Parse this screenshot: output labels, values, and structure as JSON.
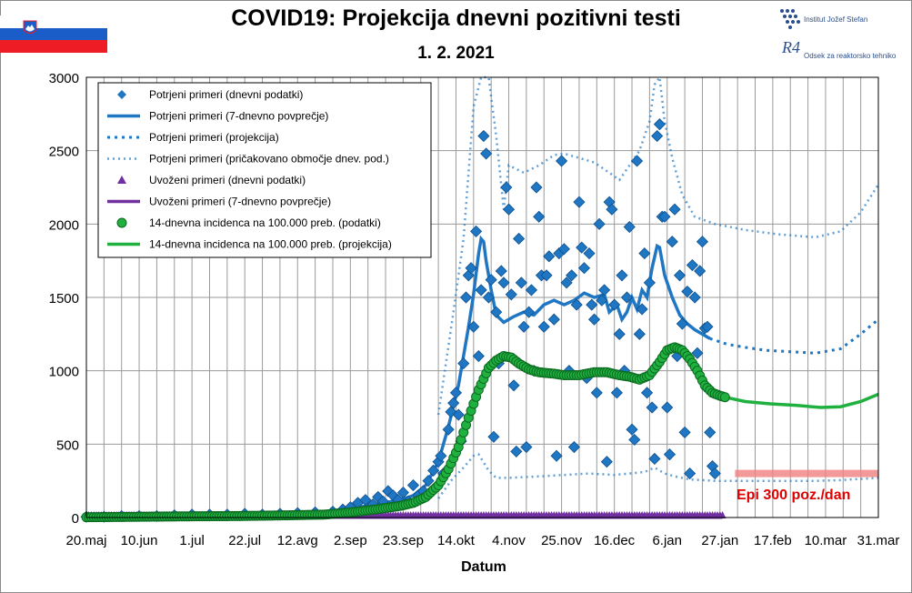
{
  "header": {
    "title": "COVID19: Projekcija dnevni pozitivni testi",
    "date": "1. 2. 2021",
    "logo_line1": "Institut Jožef Stefan",
    "logo_line2": "Odsek za reaktorsko tehniko",
    "logo_mark": "R4"
  },
  "colors": {
    "blue": "#1f77c4",
    "blue_dark": "#0e4f8c",
    "purple": "#7030a0",
    "green": "#20b040",
    "green_dark": "#0a6a1f",
    "red_band": "#f08080",
    "red_text": "#e00000",
    "grid": "#9a9a9a",
    "flag_white": "#ffffff",
    "flag_blue": "#1a5cc8",
    "flag_red": "#ee1c25"
  },
  "chart_data": {
    "type": "line",
    "xlabel": "Datum",
    "ylabel": "",
    "ylim": [
      0,
      3000
    ],
    "yticks": [
      0,
      500,
      1000,
      1500,
      2000,
      2500,
      3000
    ],
    "xlim": [
      "2020-05-20",
      "2021-03-31"
    ],
    "xticks": [
      "20.maj",
      "10.jun",
      "1.jul",
      "22.jul",
      "12.avg",
      "2.sep",
      "23.sep",
      "14.okt",
      "4.nov",
      "25.nov",
      "16.dec",
      "6.jan",
      "27.jan",
      "17.feb",
      "10.mar",
      "31.mar"
    ],
    "xtick_days": [
      0,
      21,
      42,
      63,
      84,
      105,
      126,
      147,
      168,
      189,
      210,
      231,
      252,
      273,
      294,
      315
    ],
    "grid": true,
    "legend_position": "top-left",
    "legend": [
      "Potrjeni primeri (dnevni podatki)",
      "Potrjeni primeri (7-dnevno povprečje)",
      "Potrjeni primeri (projekcija)",
      "Potrjeni primeri (pričakovano območje dnev. pod.)",
      "Uvoženi primeri (dnevni podatki)",
      "Uvoženi primeri (7-dnevno povprečje)",
      "14-dnevna incidenca na 100.000 preb. (podatki)",
      "14-dnevna incidenca na 100.000 preb. (projekcija)"
    ],
    "annotation": "Epi 300 poz./dan",
    "threshold": {
      "value": 300,
      "from_day": 258,
      "to_day": 315
    },
    "series": {
      "daily_confirmed": [
        [
          0,
          5
        ],
        [
          7,
          5
        ],
        [
          14,
          10
        ],
        [
          21,
          10
        ],
        [
          28,
          10
        ],
        [
          35,
          15
        ],
        [
          42,
          20
        ],
        [
          49,
          20
        ],
        [
          56,
          20
        ],
        [
          63,
          25
        ],
        [
          70,
          20
        ],
        [
          77,
          25
        ],
        [
          84,
          30
        ],
        [
          91,
          35
        ],
        [
          98,
          40
        ],
        [
          102,
          55
        ],
        [
          105,
          70
        ],
        [
          108,
          100
        ],
        [
          111,
          120
        ],
        [
          114,
          90
        ],
        [
          116,
          140
        ],
        [
          118,
          110
        ],
        [
          120,
          180
        ],
        [
          122,
          150
        ],
        [
          124,
          120
        ],
        [
          126,
          170
        ],
        [
          128,
          110
        ],
        [
          130,
          220
        ],
        [
          132,
          150
        ],
        [
          134,
          180
        ],
        [
          136,
          250
        ],
        [
          138,
          320
        ],
        [
          140,
          380
        ],
        [
          141,
          420
        ],
        [
          142,
          300
        ],
        [
          144,
          600
        ],
        [
          145,
          720
        ],
        [
          146,
          780
        ],
        [
          147,
          850
        ],
        [
          148,
          700
        ],
        [
          149,
          520
        ],
        [
          150,
          1050
        ],
        [
          151,
          1500
        ],
        [
          152,
          1650
        ],
        [
          153,
          1700
        ],
        [
          154,
          1300
        ],
        [
          155,
          1950
        ],
        [
          156,
          1100
        ],
        [
          157,
          1550
        ],
        [
          158,
          2600
        ],
        [
          159,
          2480
        ],
        [
          160,
          1500
        ],
        [
          161,
          1620
        ],
        [
          162,
          550
        ],
        [
          163,
          1400
        ],
        [
          164,
          1050
        ],
        [
          165,
          1680
        ],
        [
          166,
          1600
        ],
        [
          167,
          2250
        ],
        [
          168,
          2100
        ],
        [
          169,
          1520
        ],
        [
          170,
          900
        ],
        [
          171,
          450
        ],
        [
          172,
          1900
        ],
        [
          173,
          1600
        ],
        [
          174,
          1300
        ],
        [
          175,
          480
        ],
        [
          176,
          1400
        ],
        [
          177,
          1550
        ],
        [
          178,
          1000
        ],
        [
          179,
          2250
        ],
        [
          180,
          2050
        ],
        [
          181,
          1650
        ],
        [
          182,
          1300
        ],
        [
          183,
          1650
        ],
        [
          184,
          1780
        ],
        [
          186,
          1350
        ],
        [
          187,
          420
        ],
        [
          188,
          1800
        ],
        [
          189,
          2430
        ],
        [
          190,
          1830
        ],
        [
          191,
          1600
        ],
        [
          192,
          1000
        ],
        [
          193,
          1650
        ],
        [
          194,
          480
        ],
        [
          195,
          1450
        ],
        [
          196,
          2150
        ],
        [
          197,
          1840
        ],
        [
          198,
          1700
        ],
        [
          199,
          950
        ],
        [
          200,
          1800
        ],
        [
          201,
          1450
        ],
        [
          202,
          1350
        ],
        [
          203,
          850
        ],
        [
          204,
          2000
        ],
        [
          205,
          1480
        ],
        [
          206,
          1550
        ],
        [
          207,
          380
        ],
        [
          208,
          2150
        ],
        [
          209,
          2100
        ],
        [
          210,
          1450
        ],
        [
          211,
          850
        ],
        [
          212,
          1250
        ],
        [
          213,
          1650
        ],
        [
          214,
          1000
        ],
        [
          215,
          1500
        ],
        [
          216,
          1980
        ],
        [
          217,
          600
        ],
        [
          218,
          530
        ],
        [
          219,
          2430
        ],
        [
          220,
          1250
        ],
        [
          221,
          1420
        ],
        [
          222,
          1800
        ],
        [
          223,
          850
        ],
        [
          224,
          1600
        ],
        [
          225,
          750
        ],
        [
          226,
          400
        ],
        [
          227,
          2600
        ],
        [
          228,
          2680
        ],
        [
          229,
          2050
        ],
        [
          230,
          2050
        ],
        [
          231,
          750
        ],
        [
          232,
          430
        ],
        [
          233,
          1880
        ],
        [
          234,
          2100
        ],
        [
          235,
          1100
        ],
        [
          236,
          1650
        ],
        [
          237,
          1320
        ],
        [
          238,
          580
        ],
        [
          239,
          1540
        ],
        [
          240,
          300
        ],
        [
          241,
          1720
        ],
        [
          242,
          1500
        ],
        [
          243,
          1120
        ],
        [
          244,
          1680
        ],
        [
          245,
          1880
        ],
        [
          246,
          1290
        ],
        [
          247,
          1300
        ],
        [
          248,
          580
        ],
        [
          249,
          350
        ],
        [
          250,
          300
        ]
      ],
      "avg7_confirmed": [
        [
          0,
          5
        ],
        [
          20,
          10
        ],
        [
          40,
          15
        ],
        [
          60,
          20
        ],
        [
          80,
          30
        ],
        [
          95,
          40
        ],
        [
          105,
          60
        ],
        [
          115,
          90
        ],
        [
          125,
          120
        ],
        [
          130,
          150
        ],
        [
          135,
          220
        ],
        [
          140,
          380
        ],
        [
          144,
          620
        ],
        [
          148,
          900
        ],
        [
          152,
          1300
        ],
        [
          154,
          1520
        ],
        [
          156,
          1800
        ],
        [
          157,
          1900
        ],
        [
          158,
          1880
        ],
        [
          159,
          1750
        ],
        [
          161,
          1550
        ],
        [
          163,
          1380
        ],
        [
          166,
          1330
        ],
        [
          170,
          1370
        ],
        [
          174,
          1400
        ],
        [
          178,
          1380
        ],
        [
          182,
          1450
        ],
        [
          186,
          1480
        ],
        [
          190,
          1450
        ],
        [
          194,
          1480
        ],
        [
          198,
          1530
        ],
        [
          202,
          1500
        ],
        [
          206,
          1520
        ],
        [
          208,
          1400
        ],
        [
          211,
          1450
        ],
        [
          213,
          1350
        ],
        [
          215,
          1400
        ],
        [
          217,
          1500
        ],
        [
          219,
          1420
        ],
        [
          221,
          1550
        ],
        [
          223,
          1500
        ],
        [
          225,
          1700
        ],
        [
          227,
          1850
        ],
        [
          228,
          1840
        ],
        [
          230,
          1650
        ],
        [
          233,
          1500
        ],
        [
          236,
          1380
        ],
        [
          239,
          1320
        ],
        [
          242,
          1280
        ],
        [
          245,
          1250
        ],
        [
          248,
          1220
        ]
      ],
      "projection": [
        [
          248,
          1220
        ],
        [
          255,
          1180
        ],
        [
          262,
          1160
        ],
        [
          270,
          1140
        ],
        [
          280,
          1130
        ],
        [
          290,
          1120
        ],
        [
          300,
          1150
        ],
        [
          308,
          1250
        ],
        [
          315,
          1350
        ]
      ],
      "range_upper": [
        [
          140,
          700
        ],
        [
          146,
          1400
        ],
        [
          150,
          1900
        ],
        [
          154,
          2800
        ],
        [
          157,
          3000
        ],
        [
          160,
          3000
        ],
        [
          163,
          2600
        ],
        [
          166,
          2100
        ],
        [
          168,
          2400
        ],
        [
          174,
          2350
        ],
        [
          180,
          2400
        ],
        [
          186,
          2470
        ],
        [
          190,
          2480
        ],
        [
          196,
          2450
        ],
        [
          202,
          2420
        ],
        [
          208,
          2350
        ],
        [
          212,
          2300
        ],
        [
          216,
          2400
        ],
        [
          220,
          2500
        ],
        [
          224,
          2700
        ],
        [
          226,
          2950
        ],
        [
          228,
          3000
        ],
        [
          230,
          2700
        ],
        [
          233,
          2450
        ],
        [
          237,
          2200
        ],
        [
          242,
          2050
        ],
        [
          250,
          2000
        ],
        [
          262,
          1960
        ],
        [
          275,
          1930
        ],
        [
          290,
          1910
        ],
        [
          300,
          1950
        ],
        [
          308,
          2080
        ],
        [
          315,
          2270
        ]
      ],
      "range_lower": [
        [
          140,
          130
        ],
        [
          145,
          250
        ],
        [
          150,
          340
        ],
        [
          154,
          420
        ],
        [
          156,
          430
        ],
        [
          160,
          320
        ],
        [
          163,
          270
        ],
        [
          168,
          270
        ],
        [
          180,
          280
        ],
        [
          190,
          290
        ],
        [
          200,
          300
        ],
        [
          210,
          290
        ],
        [
          216,
          300
        ],
        [
          222,
          310
        ],
        [
          226,
          340
        ],
        [
          230,
          300
        ],
        [
          234,
          280
        ],
        [
          240,
          260
        ],
        [
          250,
          250
        ],
        [
          262,
          250
        ],
        [
          275,
          250
        ],
        [
          290,
          250
        ],
        [
          300,
          255
        ],
        [
          315,
          270
        ]
      ],
      "imported_avg": [
        [
          0,
          0
        ],
        [
          253,
          0
        ]
      ],
      "incidence14": [
        [
          0,
          2
        ],
        [
          20,
          5
        ],
        [
          40,
          8
        ],
        [
          60,
          10
        ],
        [
          80,
          15
        ],
        [
          95,
          20
        ],
        [
          105,
          35
        ],
        [
          115,
          55
        ],
        [
          125,
          80
        ],
        [
          130,
          100
        ],
        [
          135,
          140
        ],
        [
          140,
          220
        ],
        [
          144,
          330
        ],
        [
          148,
          480
        ],
        [
          152,
          680
        ],
        [
          156,
          870
        ],
        [
          160,
          1020
        ],
        [
          163,
          1070
        ],
        [
          166,
          1100
        ],
        [
          169,
          1090
        ],
        [
          172,
          1050
        ],
        [
          176,
          1010
        ],
        [
          180,
          990
        ],
        [
          186,
          980
        ],
        [
          190,
          970
        ],
        [
          196,
          970
        ],
        [
          202,
          990
        ],
        [
          207,
          990
        ],
        [
          212,
          970
        ],
        [
          216,
          960
        ],
        [
          220,
          940
        ],
        [
          224,
          970
        ],
        [
          228,
          1060
        ],
        [
          231,
          1140
        ],
        [
          234,
          1160
        ],
        [
          237,
          1140
        ],
        [
          240,
          1080
        ],
        [
          243,
          1000
        ],
        [
          246,
          900
        ],
        [
          249,
          850
        ],
        [
          252,
          830
        ],
        [
          254,
          820
        ]
      ],
      "incidence14_projection": [
        [
          254,
          820
        ],
        [
          262,
          790
        ],
        [
          272,
          775
        ],
        [
          282,
          765
        ],
        [
          292,
          750
        ],
        [
          300,
          755
        ],
        [
          308,
          790
        ],
        [
          315,
          840
        ]
      ]
    }
  }
}
